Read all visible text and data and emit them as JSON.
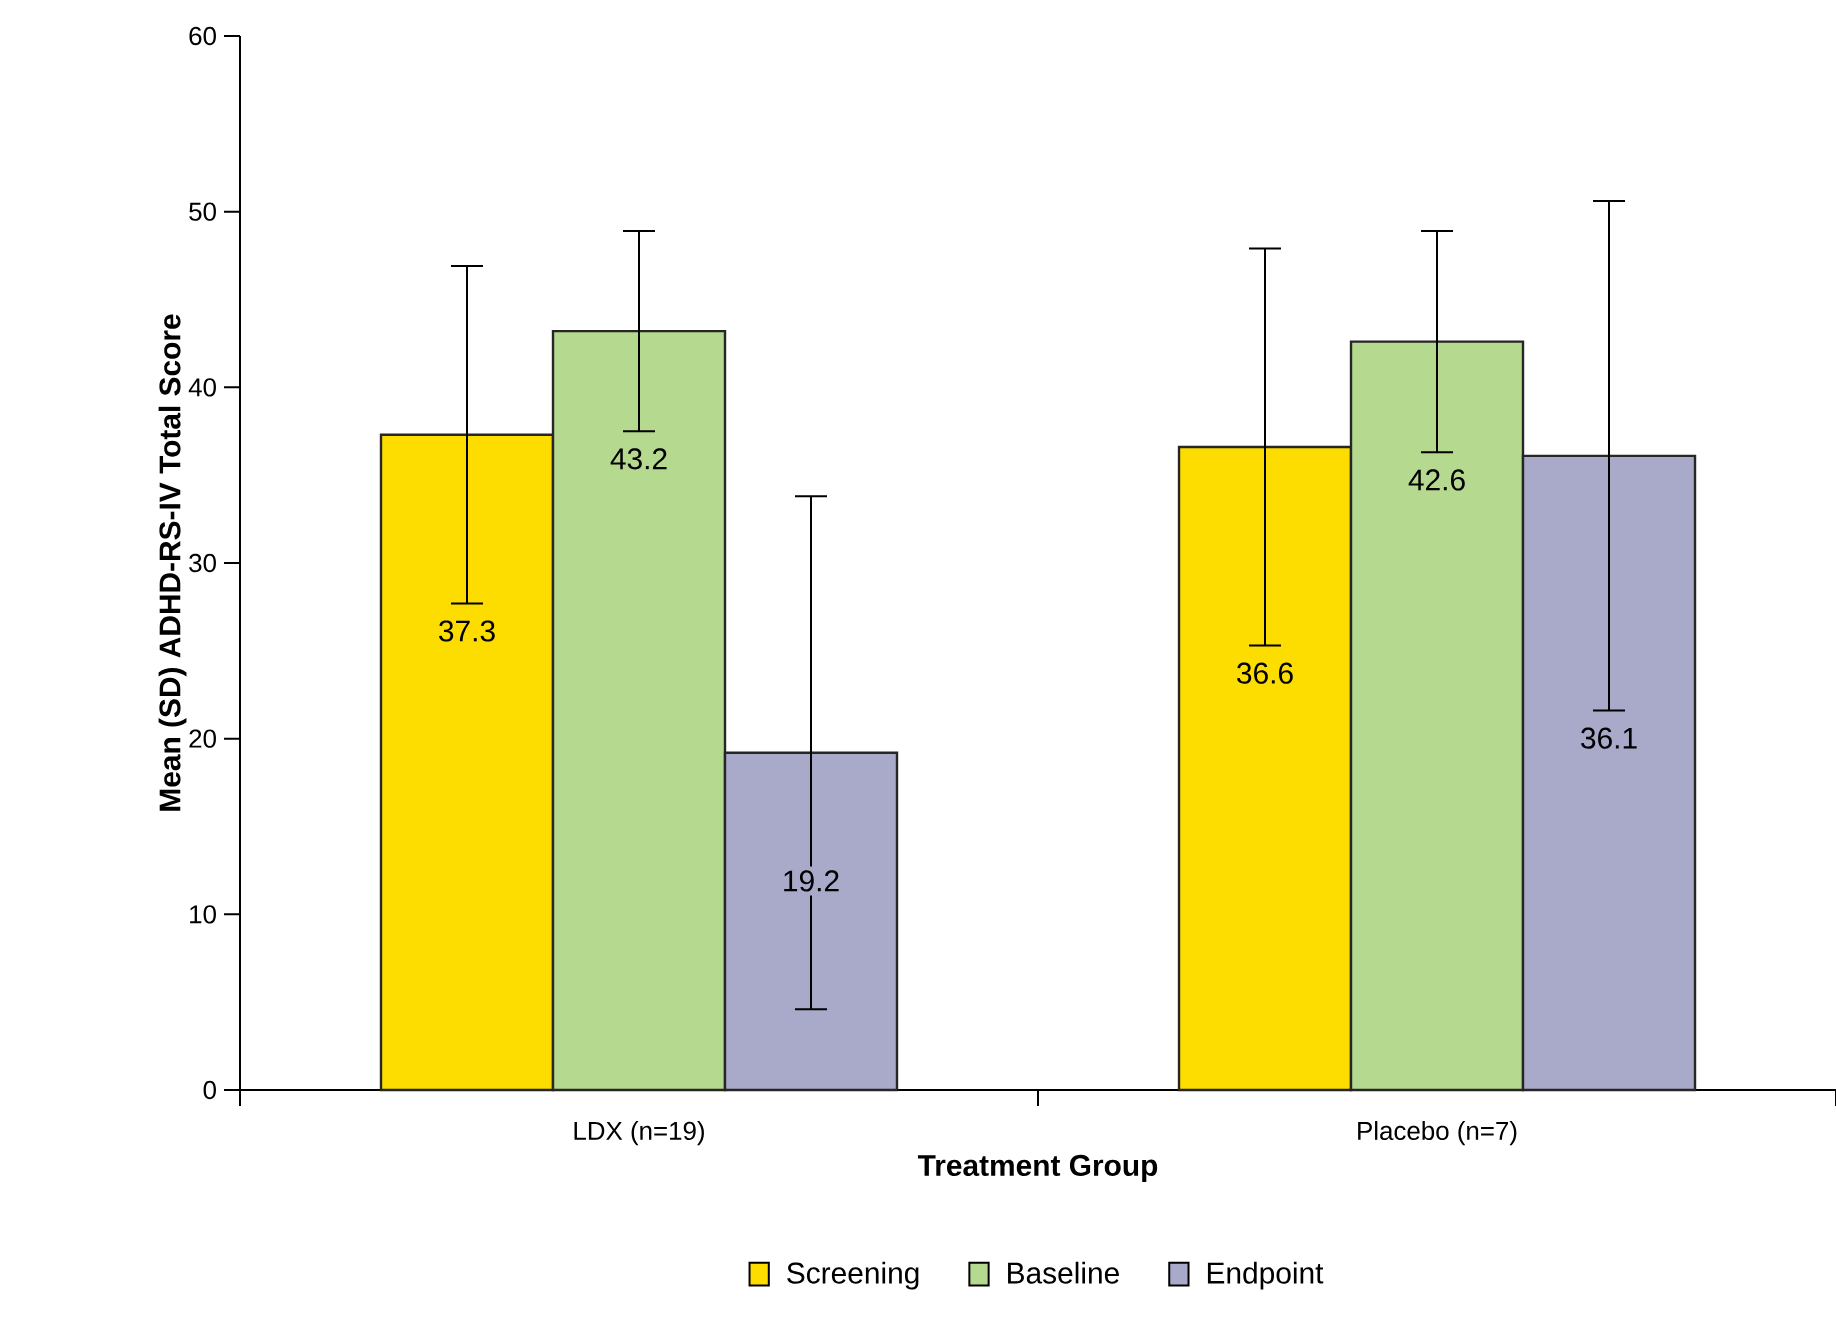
{
  "chart_data": {
    "type": "bar",
    "xlabel": "Treatment Group",
    "ylabel": "Mean (SD) ADHD-RS-IV Total Score",
    "categories": [
      "LDX (n=19)",
      "Placebo (n=7)"
    ],
    "series": [
      {
        "name": "Screening",
        "color": "#fddc00",
        "values": [
          37.3,
          36.6
        ],
        "errors": [
          9.6,
          11.3
        ]
      },
      {
        "name": "Baseline",
        "color": "#b5d98e",
        "values": [
          43.2,
          42.6
        ],
        "errors": [
          5.7,
          6.3
        ]
      },
      {
        "name": "Endpoint",
        "color": "#a9a9ca",
        "values": [
          19.2,
          36.1
        ],
        "errors": [
          14.6,
          14.5
        ]
      }
    ],
    "ylim": [
      0,
      60
    ],
    "yticks": [
      0,
      10,
      20,
      30,
      40,
      50,
      60
    ],
    "data_labels": true,
    "legend": "bottom",
    "grid": false
  }
}
